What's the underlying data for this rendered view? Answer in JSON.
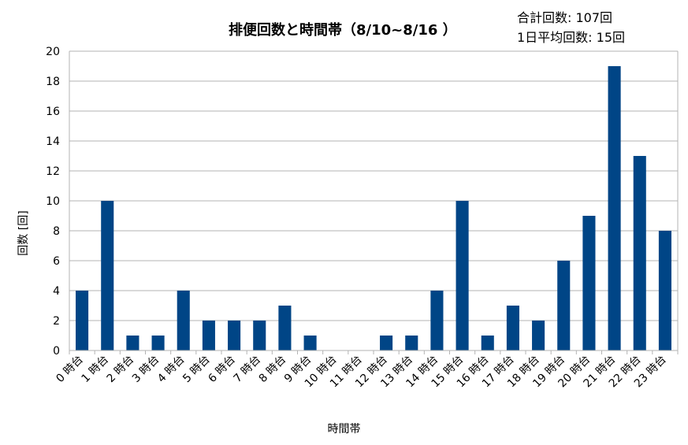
{
  "header": {
    "title": "排便回数と時間帯（8/10~8/16 ）",
    "total_text": "合計回数: 107回",
    "daily_avg_text": "1日平均回数: 15回"
  },
  "colors": {
    "bar": "#004586",
    "grid": "#b3b3b3",
    "axis": "#b3b3b3"
  },
  "chart_data": {
    "type": "bar",
    "title": "排便回数と時間帯（8/10~8/16 ）",
    "xlabel": "時間帯",
    "ylabel": "回数 [回]",
    "ylim": [
      0,
      20
    ],
    "yticks": [
      0,
      2,
      4,
      6,
      8,
      10,
      12,
      14,
      16,
      18,
      20
    ],
    "grid": true,
    "legend": "none",
    "categories": [
      "0 時台",
      "1 時台",
      "2 時台",
      "3 時台",
      "4 時台",
      "5 時台",
      "6 時台",
      "7 時台",
      "8 時台",
      "9 時台",
      "10 時台",
      "11 時台",
      "12 時台",
      "13 時台",
      "14 時台",
      "15 時台",
      "16 時台",
      "17 時台",
      "18 時台",
      "19 時台",
      "20 時台",
      "21 時台",
      "22 時台",
      "23 時台"
    ],
    "values": [
      4,
      10,
      1,
      1,
      4,
      2,
      2,
      2,
      3,
      1,
      0,
      0,
      1,
      1,
      4,
      10,
      1,
      3,
      2,
      6,
      9,
      19,
      13,
      8
    ]
  }
}
